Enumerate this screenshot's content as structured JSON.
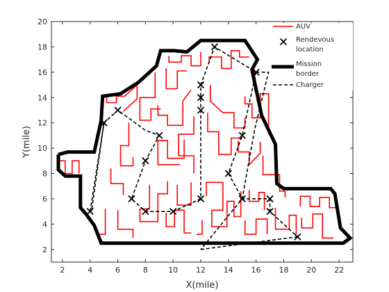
{
  "chart_data": {
    "type": "line",
    "title": "",
    "xlabel": "X(mile)",
    "ylabel": "Y(mile)",
    "xlim": [
      1.2,
      23
    ],
    "ylim": [
      1,
      20
    ],
    "xticks": [
      2,
      4,
      6,
      8,
      10,
      12,
      14,
      16,
      18,
      20,
      22
    ],
    "yticks": [
      2,
      4,
      6,
      8,
      10,
      12,
      14,
      16,
      18,
      20
    ],
    "grid": false,
    "legend_position": "top-right",
    "series": [
      {
        "name": "AUV",
        "style": "solid",
        "color": "#ff0000",
        "segments": [
          [
            [
              1.7,
              9
            ],
            [
              2.2,
              9
            ],
            [
              2.2,
              8
            ],
            [
              2.7,
              8
            ],
            [
              2.7,
              9
            ],
            [
              3.2,
              9
            ],
            [
              3.2,
              8
            ]
          ],
          [
            [
              5.2,
              14.1
            ],
            [
              5.2,
              13.6
            ],
            [
              5.9,
              13.6
            ],
            [
              5.9,
              14.1
            ],
            [
              6.5,
              14.1
            ],
            [
              7.4,
              15
            ],
            [
              7.4,
              13.9
            ],
            [
              6.4,
              12.9
            ]
          ],
          [
            [
              8.7,
              16
            ],
            [
              8.7,
              14
            ],
            [
              7.6,
              14
            ],
            [
              7.6,
              12.2
            ],
            [
              8.4,
              12.2
            ],
            [
              8.4,
              13.1
            ],
            [
              9.1,
              13.1
            ]
          ],
          [
            [
              9.5,
              16.3
            ],
            [
              9.5,
              14.7
            ],
            [
              10.3,
              14.7
            ],
            [
              10.3,
              16.1
            ],
            [
              11,
              16.1
            ]
          ],
          [
            [
              9.7,
              17.3
            ],
            [
              9.7,
              16.8
            ],
            [
              10.6,
              16.8
            ],
            [
              10.6,
              17.3
            ],
            [
              11.3,
              17.3
            ],
            [
              11.3,
              16.5
            ],
            [
              12,
              16.5
            ],
            [
              12,
              17.6
            ]
          ],
          [
            [
              12.6,
              16.7
            ],
            [
              12.6,
              17.2
            ],
            [
              13.5,
              17.2
            ],
            [
              13.5,
              16.3
            ],
            [
              14.2,
              16.3
            ],
            [
              14.2,
              17.7
            ],
            [
              14.8,
              17.7
            ],
            [
              14.8,
              17.2
            ],
            [
              15.5,
              17.2
            ]
          ],
          [
            [
              6.8,
              12
            ],
            [
              6.8,
              10.2
            ],
            [
              6.2,
              10.2
            ],
            [
              6.2,
              8.6
            ],
            [
              7.1,
              8.6
            ],
            [
              7.1,
              9.3
            ]
          ],
          [
            [
              8.9,
              13.4
            ],
            [
              8.9,
              12.6
            ],
            [
              9.6,
              12.6
            ],
            [
              9.6,
              11.8
            ],
            [
              10.7,
              11.8
            ],
            [
              10.7,
              13.7
            ],
            [
              11.3,
              14.6
            ]
          ],
          [
            [
              10.8,
              10.7
            ],
            [
              10.8,
              9.2
            ],
            [
              9.6,
              9.2
            ],
            [
              9.6,
              10.6
            ],
            [
              8.9,
              10.6
            ],
            [
              8.9,
              8.7
            ],
            [
              10.5,
              8.7
            ]
          ],
          [
            [
              5.5,
              8.4
            ],
            [
              5.5,
              7.2
            ],
            [
              6.4,
              7.2
            ],
            [
              6.4,
              6.3
            ]
          ],
          [
            [
              8.3,
              7.1
            ],
            [
              8.3,
              5.2
            ],
            [
              7.6,
              5.2
            ],
            [
              7.6,
              4.2
            ],
            [
              8.9,
              4.2
            ],
            [
              8.9,
              6.4
            ],
            [
              9.6,
              6.4
            ],
            [
              9.6,
              7.4
            ]
          ],
          [
            [
              10.3,
              7.1
            ],
            [
              10.3,
              5.5
            ],
            [
              11.3,
              5.5
            ],
            [
              11.3,
              7.3
            ]
          ],
          [
            [
              11.5,
              12.5
            ],
            [
              11.5,
              11.1
            ],
            [
              10.4,
              11.1
            ],
            [
              10.4,
              9.4
            ],
            [
              11.5,
              9.4
            ],
            [
              11.5,
              8
            ]
          ],
          [
            [
              12.5,
              12.8
            ],
            [
              12.5,
              11.3
            ],
            [
              13.3,
              11.3
            ],
            [
              13.3,
              9.5
            ],
            [
              14.2,
              9.5
            ],
            [
              14.2,
              10.8
            ],
            [
              15,
              10.8
            ]
          ],
          [
            [
              12.7,
              15
            ],
            [
              12.7,
              13.7
            ],
            [
              13.6,
              12.8
            ],
            [
              14.4,
              12.8
            ],
            [
              14.4,
              11.6
            ],
            [
              15.2,
              11.6
            ],
            [
              15.2,
              12.4
            ]
          ],
          [
            [
              15.2,
              14.1
            ],
            [
              15.2,
              13.5
            ],
            [
              15.7,
              13.5
            ],
            [
              15.7,
              12.4
            ],
            [
              16.3,
              12.4
            ],
            [
              16.3,
              14.3
            ],
            [
              16.9,
              14.3
            ],
            [
              16.9,
              12.2
            ],
            [
              16.9,
              11.1
            ]
          ],
          [
            [
              15.9,
              16.2
            ],
            [
              15.9,
              14.5
            ]
          ],
          [
            [
              12.4,
              6.2
            ],
            [
              12.4,
              7.3
            ],
            [
              13.6,
              7.3
            ],
            [
              13.6,
              5.1
            ],
            [
              12.8,
              5.1
            ],
            [
              12.8,
              3.8
            ],
            [
              13.9,
              3.8
            ],
            [
              13.9,
              5.8
            ],
            [
              14.4,
              5.8
            ],
            [
              14.4,
              4.6
            ],
            [
              14.9,
              4.6
            ],
            [
              14.9,
              6.6
            ]
          ],
          [
            [
              14.7,
              10.6
            ],
            [
              14.7,
              9.7
            ],
            [
              15.5,
              9.7
            ],
            [
              15.5,
              8.7
            ],
            [
              16.3,
              9.6
            ],
            [
              16.3,
              10.5
            ]
          ],
          [
            [
              16.5,
              9.4
            ],
            [
              16.5,
              7.9
            ],
            [
              17.7,
              7.9
            ],
            [
              17.7,
              6.6
            ],
            [
              18.1,
              6.6
            ],
            [
              18.1,
              6.1
            ]
          ],
          [
            [
              15.5,
              6.7
            ],
            [
              15.5,
              5.8
            ],
            [
              16.2,
              5.8
            ],
            [
              16.2,
              6.5
            ],
            [
              16.6,
              6.5
            ],
            [
              16.6,
              5.1
            ]
          ],
          [
            [
              17.4,
              5.3
            ],
            [
              17.4,
              3.6
            ],
            [
              18.4,
              3.6
            ],
            [
              18.4,
              4.7
            ],
            [
              18.9,
              4.7
            ],
            [
              18.9,
              3.2
            ]
          ],
          [
            [
              19.2,
              5.4
            ],
            [
              19.2,
              6.2
            ],
            [
              19.9,
              6.2
            ],
            [
              19.9,
              5.4
            ],
            [
              20.6,
              5.4
            ],
            [
              20.6,
              6.1
            ],
            [
              21.3,
              6.1
            ],
            [
              21.3,
              5.3
            ],
            [
              21.8,
              5.3
            ]
          ],
          [
            [
              5.1,
              5.2
            ],
            [
              5.1,
              3.2
            ],
            [
              4.6,
              3.2
            ],
            [
              4.6,
              2.9
            ]
          ],
          [
            [
              6,
              5.1
            ],
            [
              6,
              3.6
            ],
            [
              7.1,
              3.6
            ],
            [
              7.1,
              2.9
            ]
          ],
          [
            [
              9.5,
              4.9
            ],
            [
              9.5,
              3.8
            ],
            [
              10.1,
              3.8
            ],
            [
              10.1,
              5.1
            ],
            [
              10.8,
              5.1
            ],
            [
              10.8,
              3.3
            ],
            [
              11.3,
              3.3
            ]
          ],
          [
            [
              12.1,
              4.3
            ],
            [
              12.1,
              3.2
            ],
            [
              11.7,
              3.2
            ]
          ],
          [
            [
              15.2,
              4.3
            ],
            [
              15.2,
              3.2
            ],
            [
              16,
              3.2
            ],
            [
              16,
              4.4
            ],
            [
              16.8,
              4.4
            ],
            [
              16.8,
              3.2
            ]
          ],
          [
            [
              19.3,
              4.5
            ],
            [
              19.3,
              3.7
            ],
            [
              20.1,
              3.7
            ],
            [
              20.1,
              4.8
            ],
            [
              20.8,
              4.8
            ],
            [
              20.8,
              2.9
            ],
            [
              21.6,
              2.9
            ]
          ]
        ]
      },
      {
        "name": "Charger",
        "style": "dashed",
        "color": "#000000",
        "segments": [
          [
            [
              4,
              5
            ],
            [
              5,
              12
            ],
            [
              6,
              13
            ],
            [
              8,
              11.4
            ],
            [
              9,
              11
            ],
            [
              8,
              9
            ],
            [
              7,
              6
            ],
            [
              8,
              5
            ],
            [
              10,
              5
            ],
            [
              12,
              6
            ],
            [
              12,
              13
            ],
            [
              12,
              14
            ],
            [
              12,
              15
            ],
            [
              13,
              18
            ],
            [
              16,
              16
            ],
            [
              15,
              11
            ],
            [
              14,
              8
            ],
            [
              15,
              6
            ],
            [
              17,
              6
            ],
            [
              17,
              5
            ],
            [
              19,
              3
            ]
          ],
          [
            [
              5,
              12
            ],
            [
              4.1,
              5
            ]
          ],
          [
            [
              16,
              16
            ],
            [
              16.9,
              16
            ],
            [
              15.9,
              11.5
            ],
            [
              15,
              6
            ],
            [
              12,
              2
            ]
          ],
          [
            [
              12,
              2
            ],
            [
              19,
              3
            ]
          ]
        ]
      }
    ],
    "rendezvous": {
      "name": "Rendevous\nlocation",
      "marker": "x",
      "color": "#000000",
      "points": [
        [
          4,
          5
        ],
        [
          5,
          12
        ],
        [
          6,
          13
        ],
        [
          9,
          11
        ],
        [
          8,
          9
        ],
        [
          7,
          6
        ],
        [
          8,
          5
        ],
        [
          10,
          5
        ],
        [
          12,
          6
        ],
        [
          12,
          13
        ],
        [
          12,
          14
        ],
        [
          12,
          15
        ],
        [
          13,
          18
        ],
        [
          16,
          16
        ],
        [
          15,
          11
        ],
        [
          14,
          8
        ],
        [
          15,
          6
        ],
        [
          17,
          6
        ],
        [
          17,
          5
        ],
        [
          19,
          3
        ]
      ]
    },
    "mission_border": {
      "name": "Mission\nborder",
      "color": "#000000",
      "points": [
        [
          1.7,
          9.5
        ],
        [
          1.7,
          8.3
        ],
        [
          2.2,
          7.8
        ],
        [
          3.3,
          7.8
        ],
        [
          3.3,
          5.3
        ],
        [
          3.7,
          4.8
        ],
        [
          4.3,
          3.9
        ],
        [
          4.8,
          2.5
        ],
        [
          22.3,
          2.5
        ],
        [
          22.8,
          2.9
        ],
        [
          22.1,
          3.7
        ],
        [
          21.7,
          6.4
        ],
        [
          21.4,
          6.8
        ],
        [
          18,
          6.8
        ],
        [
          17.5,
          7.2
        ],
        [
          17.4,
          10.3
        ],
        [
          16.4,
          12.6
        ],
        [
          15.7,
          16.2
        ],
        [
          16.1,
          17
        ],
        [
          15.2,
          18.5
        ],
        [
          12,
          18.5
        ],
        [
          11,
          17.6
        ],
        [
          10.1,
          17.7
        ],
        [
          9.1,
          17.7
        ],
        [
          8.8,
          16.5
        ],
        [
          7.5,
          15.2
        ],
        [
          6.2,
          14.3
        ],
        [
          4.9,
          14.1
        ],
        [
          4.8,
          12.2
        ],
        [
          4.3,
          9.7
        ],
        [
          2.4,
          9.7
        ],
        [
          1.7,
          9.5
        ]
      ]
    },
    "legend": [
      {
        "label": "AUV",
        "kind": "line-red"
      },
      {
        "label": "Rendevous\nlocation",
        "kind": "marker-x"
      },
      {
        "label": "Mission\nborder",
        "kind": "line-thick"
      },
      {
        "label": "Charger",
        "kind": "line-dashed"
      }
    ]
  }
}
